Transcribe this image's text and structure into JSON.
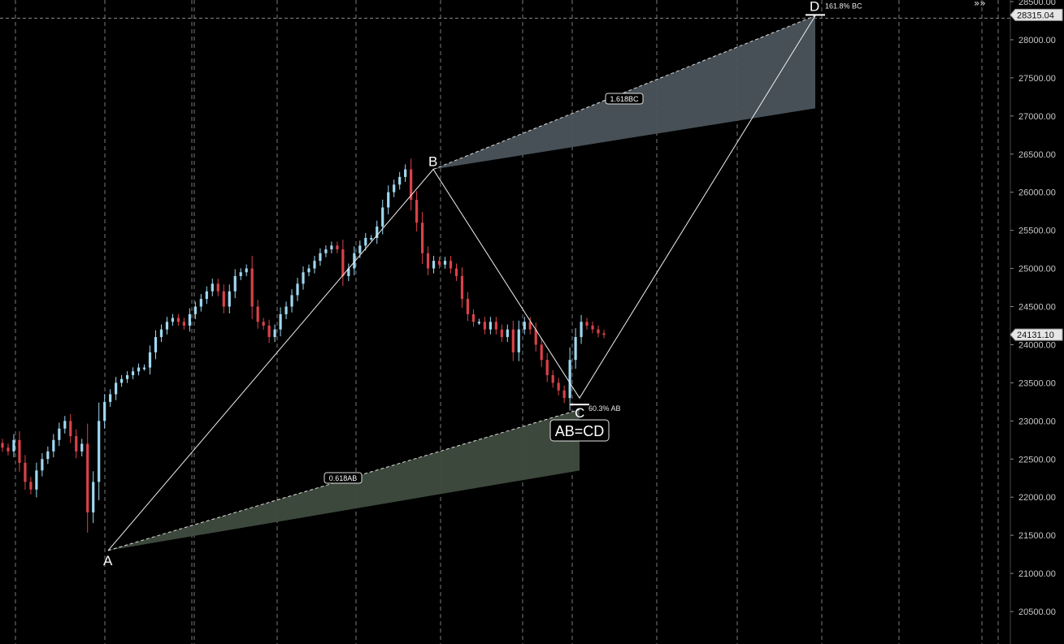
{
  "chart_data": {
    "type": "candlestick",
    "y_axis": {
      "range": [
        20300,
        28500
      ],
      "ticks": [
        "20500.00",
        "21000.00",
        "21500.00",
        "22000.00",
        "22500.00",
        "23000.00",
        "23500.00",
        "24000.00",
        "24500.00",
        "25000.00",
        "25500.00",
        "26000.00",
        "26500.00",
        "27000.00",
        "27500.00",
        "28000.00",
        "28500.00"
      ]
    },
    "grid": "vertical dashed",
    "colors": {
      "up": "#9fd8f0",
      "down": "#d9424a",
      "background": "#000000",
      "zone_ab": "#3f4c3f",
      "zone_bc": "#4b545c"
    },
    "series": [
      {
        "values": [
          22650,
          22600,
          22750,
          22450,
          22200,
          22100,
          22350,
          22500,
          22600,
          22750,
          22900,
          23000,
          22800,
          22600,
          22700,
          21800,
          22200,
          23000,
          23250,
          23350,
          23500,
          23550,
          23600,
          23650,
          23700,
          23700,
          23900,
          24100,
          24200,
          24300,
          24350,
          24300,
          24250,
          24400,
          24500,
          24600,
          24700,
          24800,
          24700,
          24500,
          24700,
          24900,
          24950,
          25000,
          24500,
          24300,
          24250,
          24100,
          24200,
          24400,
          24500,
          24650,
          24800,
          24950,
          25000,
          25100,
          25200,
          25250,
          25300,
          25250,
          24900,
          25000,
          25200,
          25300,
          25400,
          25400,
          25550,
          25800,
          26000,
          26100,
          26200,
          26300,
          25900,
          25600,
          25200,
          25000,
          25100,
          25050,
          25100,
          25000,
          24900,
          24600,
          24400,
          24300,
          24300,
          24200,
          24300,
          24200,
          24100,
          24200,
          23900,
          24200,
          24300,
          24200,
          24000,
          23800,
          23600,
          23500,
          23400,
          23300,
          23800,
          24100,
          24300,
          24250,
          24200,
          24150,
          24131.1
        ]
      }
    ],
    "pattern": {
      "points": [
        {
          "label": "A",
          "value": 21300
        },
        {
          "label": "B",
          "value": 26300
        },
        {
          "label": "C",
          "value": 23300
        },
        {
          "label": "D",
          "value": 28315
        }
      ],
      "tags": [
        "0.618AB",
        "1.618BC"
      ],
      "c_annotation": "60.3% AB",
      "d_annotation": "161.8% BC",
      "center_label": "AB=CD"
    },
    "price_labels": {
      "last": "24131.10",
      "target": "28315.04"
    }
  }
}
